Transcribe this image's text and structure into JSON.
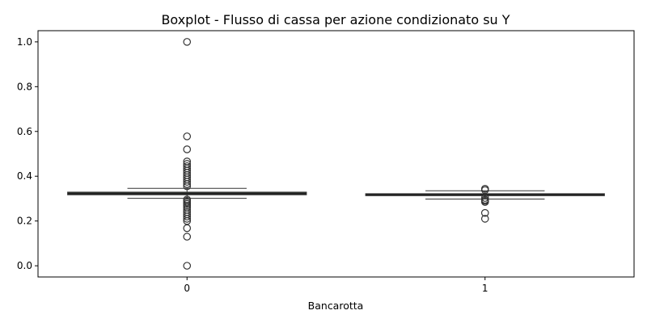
{
  "chart_data": {
    "type": "boxplot",
    "title": "Boxplot - Flusso di cassa per azione condizionato su Y",
    "xlabel": "Bancarotta",
    "ylabel": "",
    "categories": [
      "0",
      "1"
    ],
    "ylim": [
      -0.05,
      1.05
    ],
    "yticks": [
      0.0,
      0.2,
      0.4,
      0.6,
      0.8,
      1.0
    ],
    "ytick_labels": [
      "0.0",
      "0.2",
      "0.4",
      "0.6",
      "0.8",
      "1.0"
    ],
    "box_color": "#3a7a3a",
    "median_color": "#222222",
    "grid": false,
    "legend": "none",
    "series": [
      {
        "category": "0",
        "whisker_low": 0.301,
        "q1": 0.318,
        "median": 0.322,
        "q3": 0.328,
        "whisker_high": 0.346,
        "outliers": [
          1.0,
          0.578,
          0.52,
          0.466,
          0.455,
          0.445,
          0.435,
          0.425,
          0.415,
          0.405,
          0.395,
          0.385,
          0.375,
          0.365,
          0.355,
          0.296,
          0.29,
          0.283,
          0.276,
          0.268,
          0.26,
          0.25,
          0.24,
          0.23,
          0.22,
          0.21,
          0.2,
          0.168,
          0.13,
          0.0
        ]
      },
      {
        "category": "1",
        "whisker_low": 0.298,
        "q1": 0.314,
        "median": 0.317,
        "q3": 0.321,
        "whisker_high": 0.335,
        "outliers": [
          0.344,
          0.338,
          0.303,
          0.295,
          0.29,
          0.285,
          0.236,
          0.21
        ]
      }
    ]
  }
}
